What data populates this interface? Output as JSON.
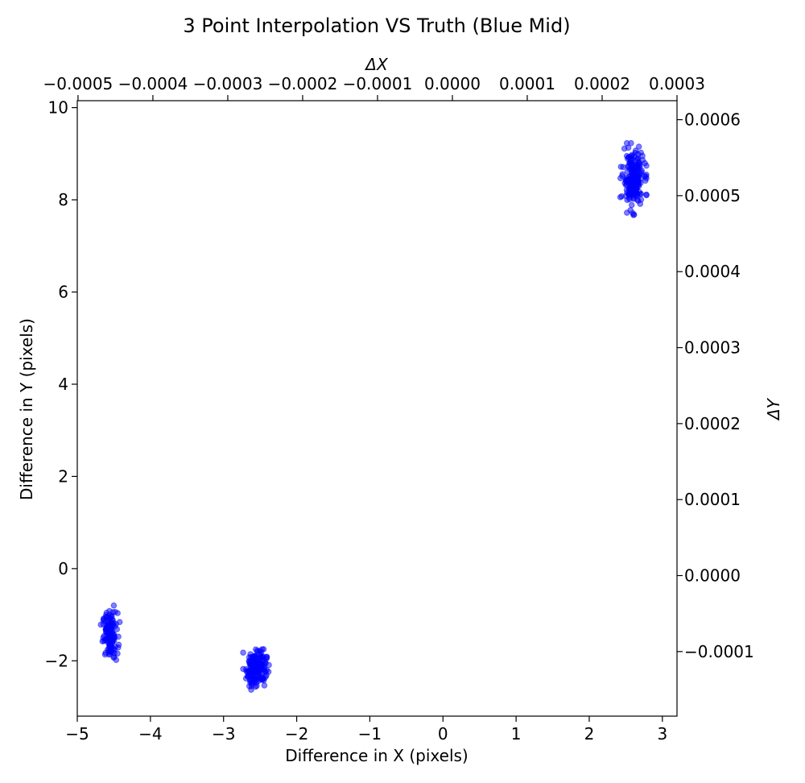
{
  "chart_data": {
    "type": "scatter",
    "title": "3 Point Interpolation VS Truth (Blue Mid)",
    "xlabel": "Difference in X (pixels)",
    "ylabel": "Difference in Y (pixels)",
    "x2label": "ΔX",
    "y2label": "ΔY",
    "xlim": [
      -5.0,
      3.2
    ],
    "ylim": [
      -3.2,
      10.15
    ],
    "x2lim": [
      -0.000501,
      0.0003
    ],
    "y2lim": [
      -0.000185,
      0.000625
    ],
    "xticks": [
      -5,
      -4,
      -3,
      -2,
      -1,
      0,
      1,
      2,
      3
    ],
    "xtick_labels": [
      "−5",
      "−4",
      "−3",
      "−2",
      "−1",
      "0",
      "1",
      "2",
      "3"
    ],
    "yticks": [
      -2,
      0,
      2,
      4,
      6,
      8,
      10
    ],
    "ytick_labels": [
      "−2",
      "0",
      "2",
      "4",
      "6",
      "8",
      "10"
    ],
    "x2ticks": [
      -0.0005,
      -0.0004,
      -0.0003,
      -0.0002,
      -0.0001,
      0.0,
      0.0001,
      0.0002,
      0.0003
    ],
    "x2tick_labels": [
      "−0.0005",
      "−0.0004",
      "−0.0003",
      "−0.0002",
      "−0.0001",
      "0.0000",
      "0.0001",
      "0.0002",
      "0.0003"
    ],
    "y2ticks": [
      -0.0001,
      0.0,
      0.0001,
      0.0002,
      0.0003,
      0.0004,
      0.0005,
      0.0006
    ],
    "y2tick_labels": [
      "−0.0001",
      "0.0000",
      "0.0001",
      "0.0002",
      "0.0003",
      "0.0004",
      "0.0005",
      "0.0006"
    ],
    "grid": false,
    "marker_color": "#0000ff",
    "marker_alpha": 0.5,
    "series": [
      {
        "clusters": [
          {
            "center_x": -4.55,
            "center_y": -1.45,
            "spread_x": 0.05,
            "spread_y": 0.25,
            "count": 130
          },
          {
            "center_x": -2.55,
            "center_y": -2.15,
            "spread_x": 0.07,
            "spread_y": 0.2,
            "count": 180
          },
          {
            "center_x": 2.6,
            "center_y": 8.45,
            "spread_x": 0.07,
            "spread_y": 0.3,
            "count": 220
          }
        ]
      }
    ]
  }
}
